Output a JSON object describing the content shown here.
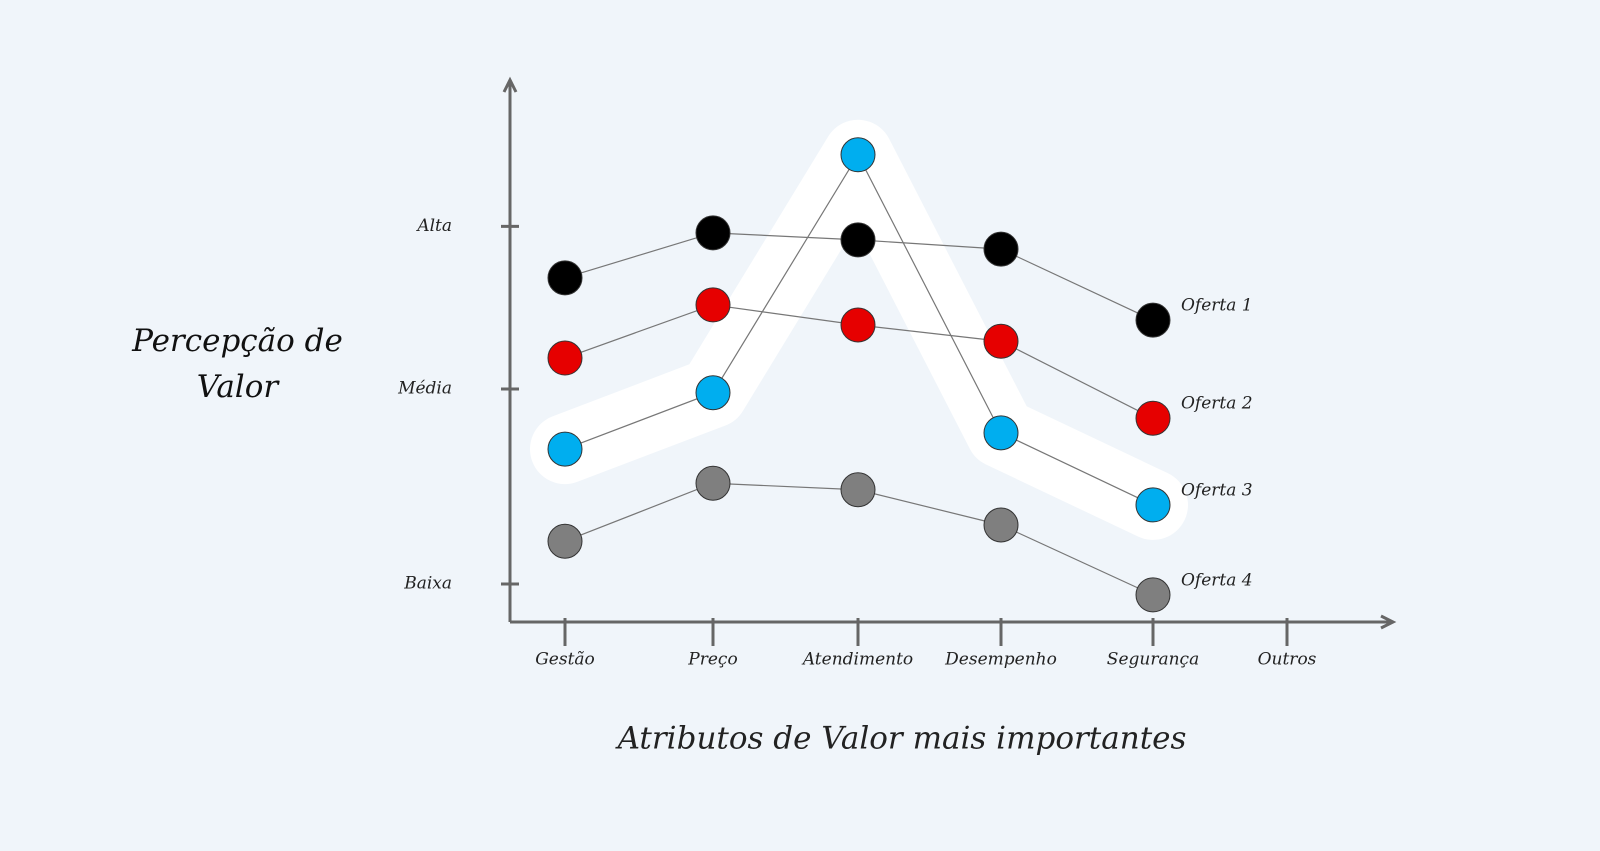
{
  "chart_data": {
    "type": "line",
    "xaxis_title": "Atributos de Valor mais importantes",
    "yaxis_title": "Percepção de Valor",
    "categories": [
      "Gestão",
      "Preço",
      "Atendimento",
      "Desempenho",
      "Segurança",
      "Outros"
    ],
    "series": [
      {
        "name": "Oferta 1",
        "color": "#000000",
        "values": [
          63.5,
          71.8,
          70.5,
          68.8,
          55.7,
          null
        ]
      },
      {
        "name": "Oferta 2",
        "color": "#e60000",
        "values": [
          48.7,
          58.5,
          54.8,
          51.8,
          37.6,
          null
        ]
      },
      {
        "name": "Oferta 3",
        "color": "#00aeef",
        "highlight": true,
        "values": [
          31.9,
          42.3,
          86.2,
          34.9,
          21.6,
          null
        ]
      },
      {
        "name": "Oferta 4",
        "color": "#7f7f7f",
        "values": [
          14.9,
          25.6,
          24.4,
          17.9,
          5,
          null
        ]
      }
    ],
    "ylim": [
      0,
      100
    ],
    "yticks": [
      {
        "value": 7,
        "label": "Baixa"
      },
      {
        "value": 43,
        "label": "Média"
      },
      {
        "value": 73,
        "label": "Alta"
      }
    ]
  }
}
